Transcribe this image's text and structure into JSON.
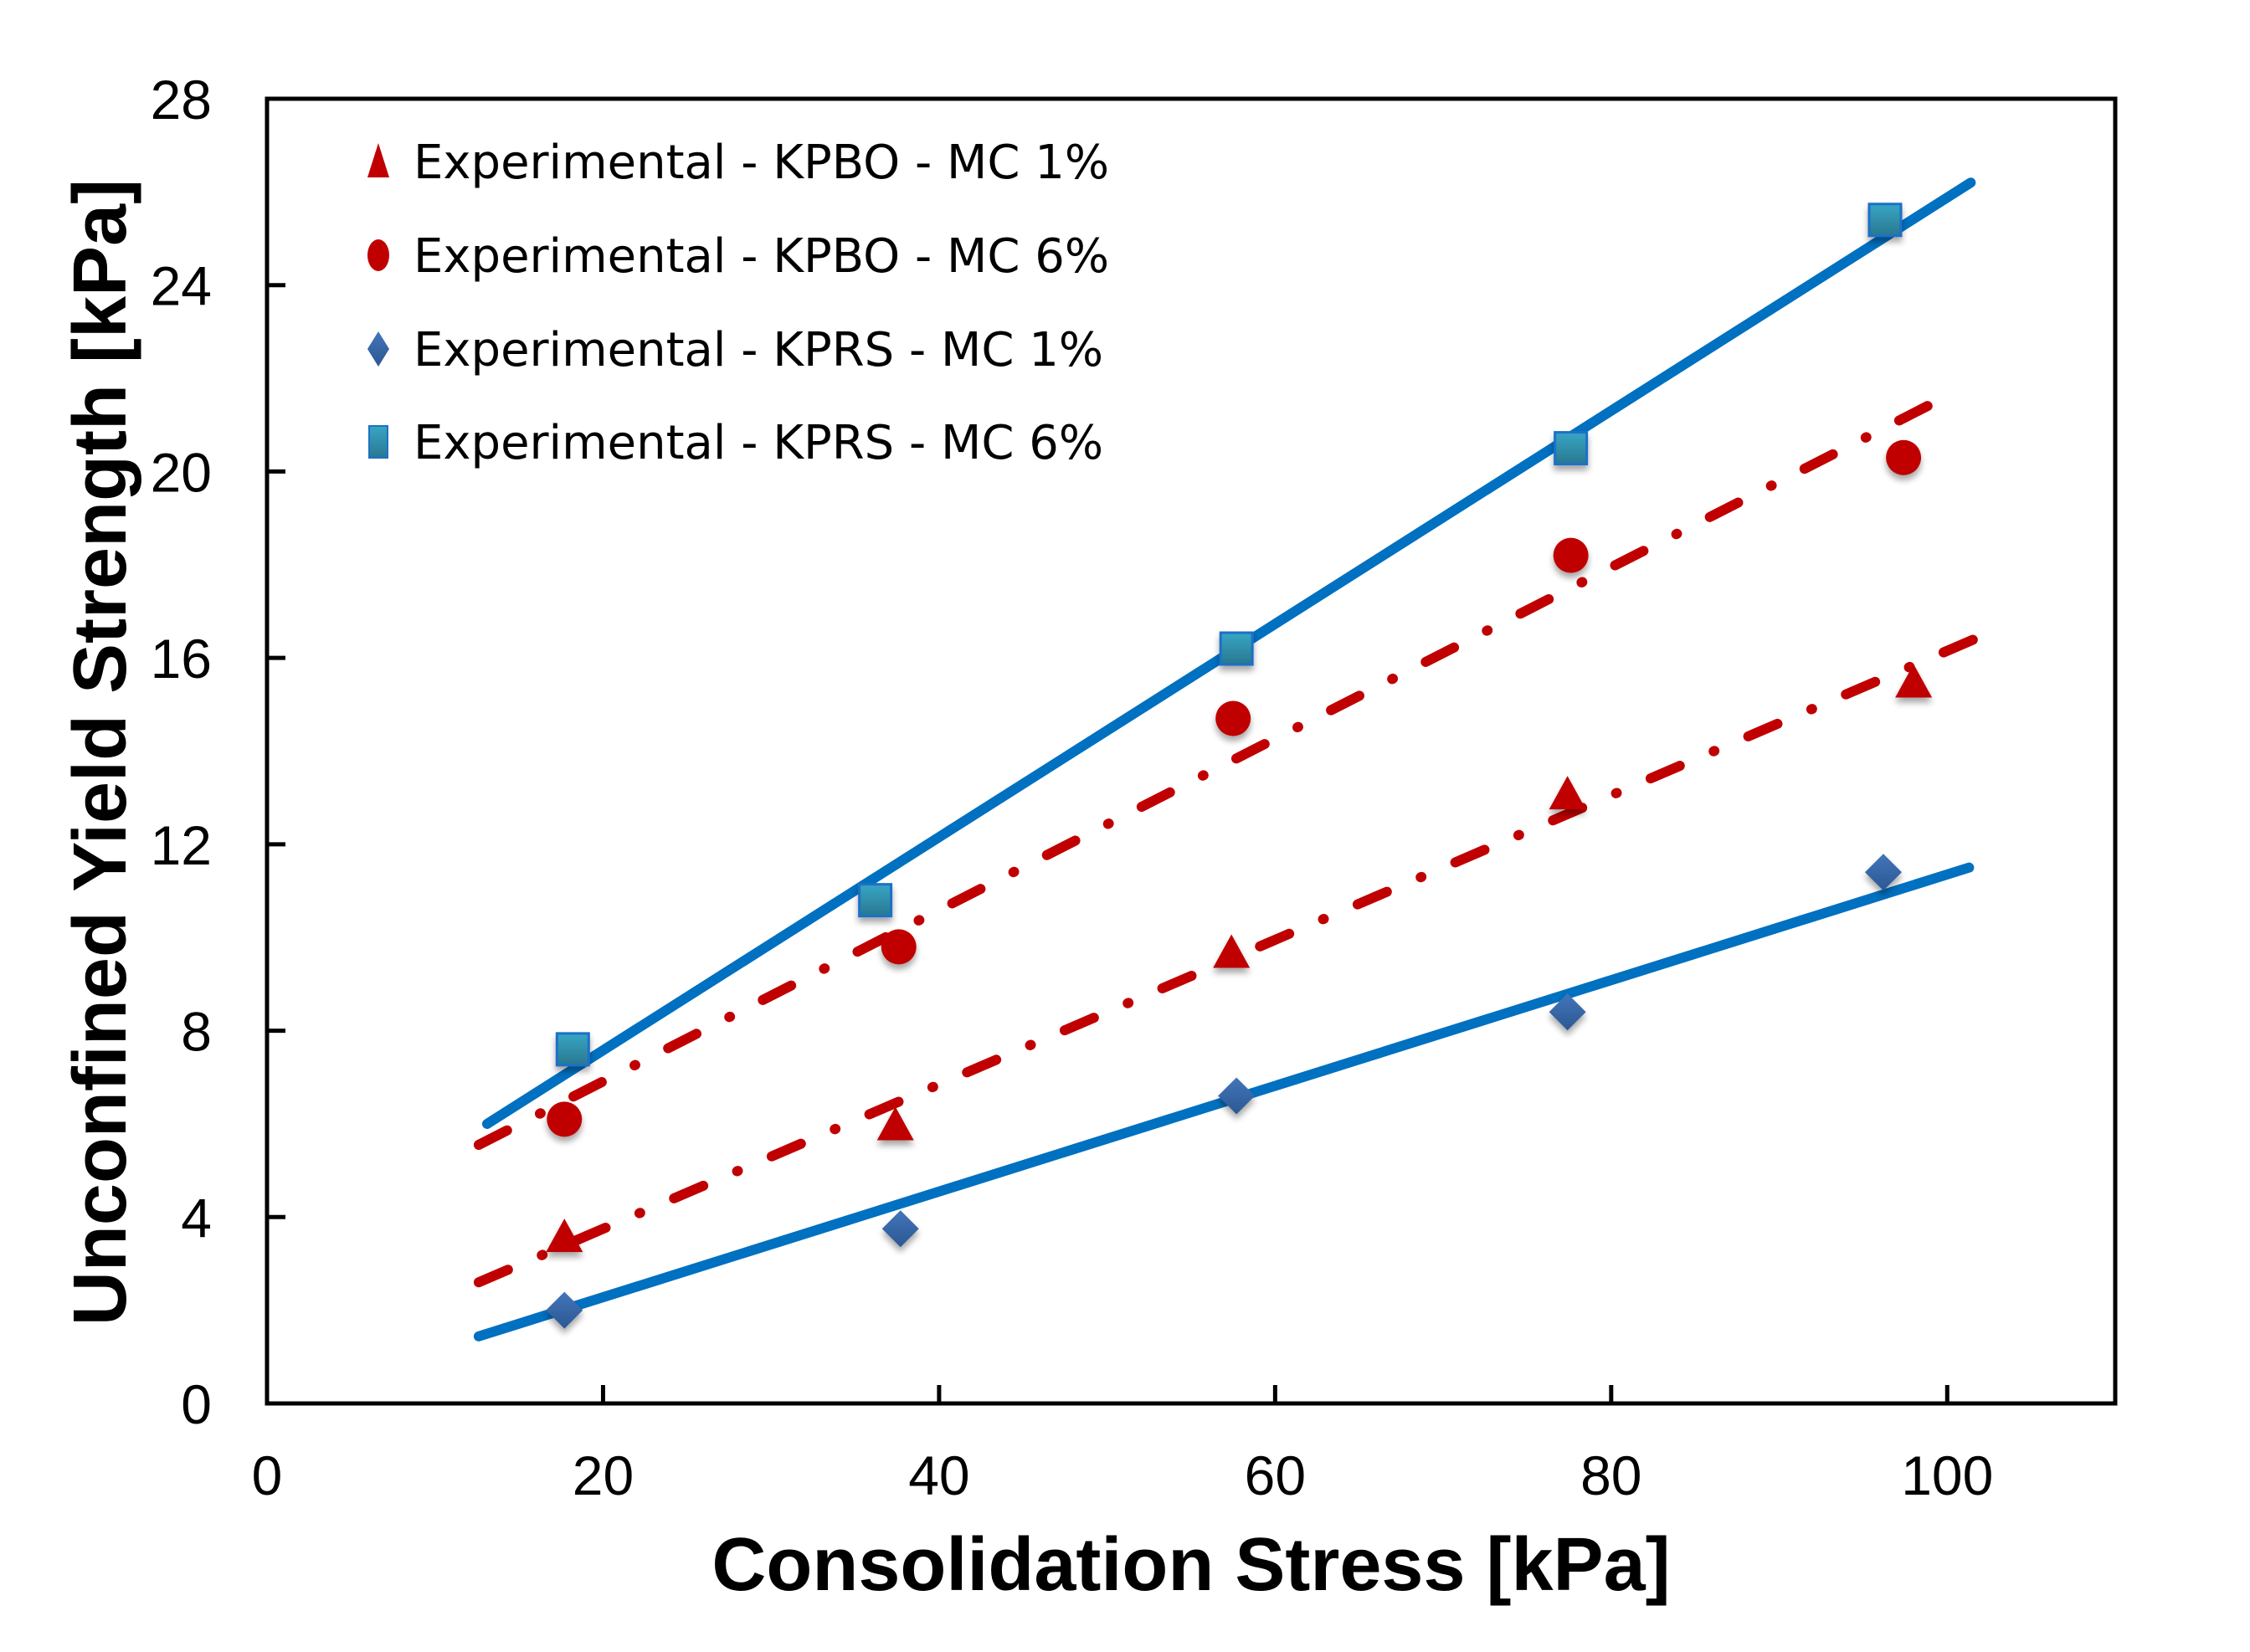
{
  "chart_data": {
    "type": "scatter",
    "title": "",
    "xlabel": "Consolidation Stress [kPa]",
    "ylabel": "Unconfined Yield Strength [kPa]",
    "xlim": [
      0,
      110
    ],
    "ylim": [
      0,
      28
    ],
    "xticks": [
      0,
      20,
      40,
      60,
      80,
      100
    ],
    "yticks": [
      0,
      4,
      8,
      12,
      16,
      20,
      24,
      28
    ],
    "grid": false,
    "legend_position": "top-left",
    "series": [
      {
        "name": "Experimental - KPBO - MC 1%",
        "marker": "triangle",
        "color": "#C00000",
        "points": [
          [
            17.7,
            3.5
          ],
          [
            37.4,
            5.9
          ],
          [
            57.4,
            9.6
          ],
          [
            77.4,
            13.0
          ],
          [
            98.0,
            15.4
          ]
        ],
        "trendline": {
          "style": "dash-dot",
          "color": "#C00000",
          "from": [
            12.6,
            2.6
          ],
          "to": [
            101.6,
            16.4
          ]
        }
      },
      {
        "name": "Experimental - KPBO - MC 6%",
        "marker": "circle",
        "color": "#C00000",
        "points": [
          [
            17.7,
            6.1
          ],
          [
            37.6,
            9.8
          ],
          [
            57.5,
            14.7
          ],
          [
            77.6,
            18.2
          ],
          [
            97.4,
            20.3
          ]
        ],
        "trendline": {
          "style": "dash-dot",
          "color": "#C00000",
          "from": [
            12.6,
            5.55
          ],
          "to": [
            100.7,
            21.75
          ]
        }
      },
      {
        "name": "Experimental - KPRS - MC 1%",
        "marker": "diamond",
        "color": "#3A6AAE",
        "points": [
          [
            17.7,
            2.0
          ],
          [
            37.7,
            3.75
          ],
          [
            57.7,
            6.6
          ],
          [
            77.4,
            8.4
          ],
          [
            96.2,
            11.4
          ]
        ],
        "trendline": {
          "style": "solid",
          "color": "#0070C0",
          "from": [
            12.6,
            1.44
          ],
          "to": [
            101.3,
            11.5
          ]
        }
      },
      {
        "name": "Experimental - KPRS - MC 6%",
        "marker": "square",
        "color": "#2E8FAE",
        "points": [
          [
            18.2,
            7.6
          ],
          [
            36.2,
            10.8
          ],
          [
            57.7,
            16.2
          ],
          [
            77.6,
            20.5
          ],
          [
            96.3,
            25.4
          ]
        ],
        "trendline": {
          "style": "solid",
          "color": "#0070C0",
          "from": [
            13.1,
            6.0
          ],
          "to": [
            101.4,
            26.2
          ]
        }
      }
    ]
  }
}
